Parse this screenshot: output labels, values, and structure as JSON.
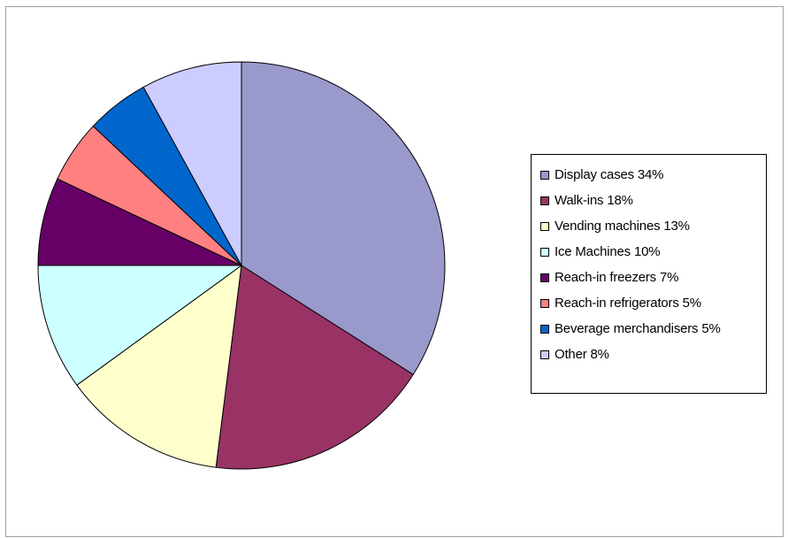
{
  "chart_data": {
    "type": "pie",
    "categories": [
      "Display cases",
      "Walk-ins",
      "Vending machines",
      "Ice Machines",
      "Reach-in freezers",
      "Reach-in refrigerators",
      "Beverage merchandisers",
      "Other"
    ],
    "values": [
      34,
      18,
      13,
      10,
      7,
      5,
      5,
      8
    ],
    "unit": "%",
    "colors": [
      "#9999cc",
      "#993366",
      "#ffffcc",
      "#ccffff",
      "#660066",
      "#ff8080",
      "#0066cc",
      "#ccccff"
    ],
    "legend_labels": [
      "Display cases 34%",
      "Walk-ins 18%",
      "Vending machines 13%",
      "Ice Machines 10%",
      "Reach-in freezers 7%",
      "Reach-in refrigerators 5%",
      "Beverage merchandisers 5%",
      "Other 8%"
    ],
    "legend_position": "right",
    "start_angle": "12 o'clock, clockwise"
  }
}
